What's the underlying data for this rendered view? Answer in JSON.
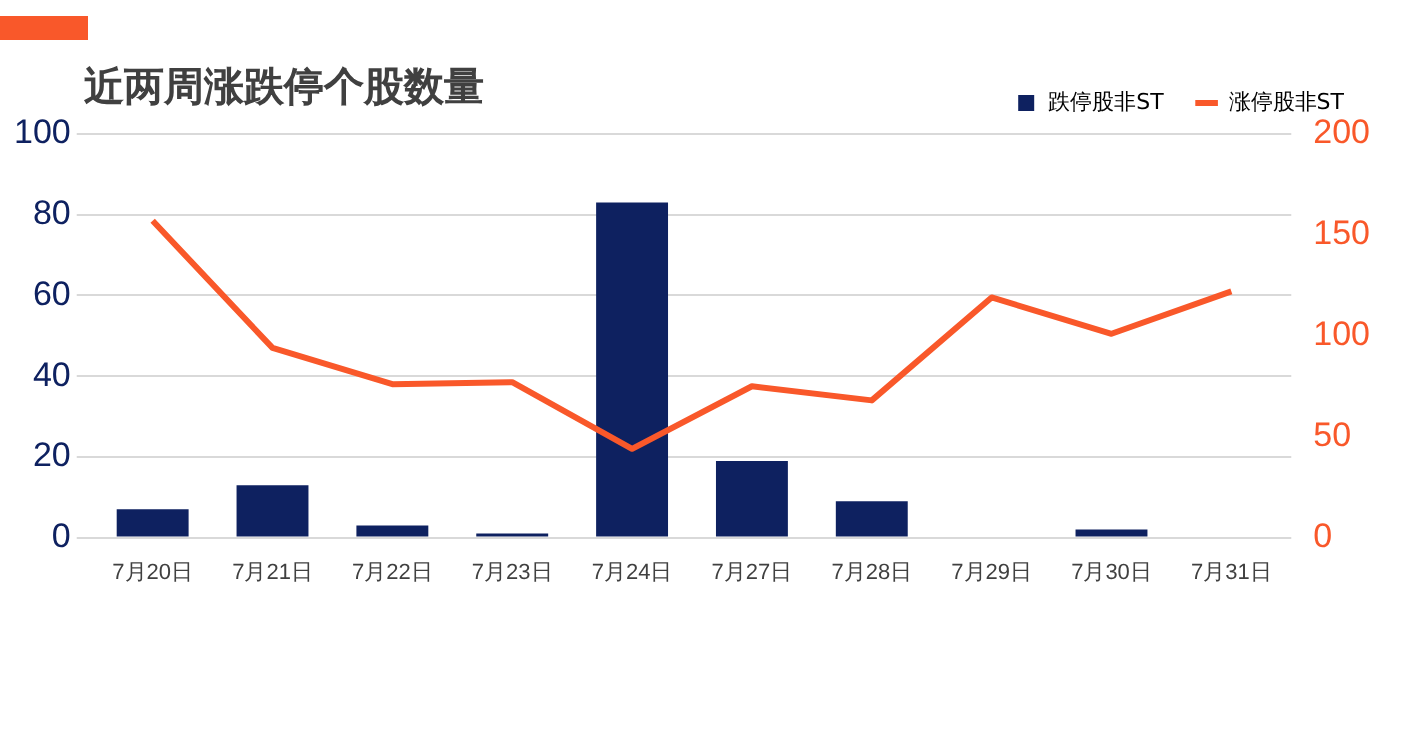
{
  "chart_data": {
    "type": "bar",
    "title": "近两周涨跌停个股数量",
    "categories": [
      "7月20日",
      "7月21日",
      "7月22日",
      "7月23日",
      "7月24日",
      "7月27日",
      "7月28日",
      "7月29日",
      "7月30日",
      "7月31日"
    ],
    "series": [
      {
        "name": "跌停股非ST",
        "color": "#0e2160",
        "values": [
          7,
          13,
          3,
          1,
          83,
          19,
          9,
          0,
          2,
          0
        ]
      },
      {
        "name": "涨停股非ST",
        "type": "line",
        "axis": "y2",
        "color": "#f9582a",
        "values": [
          157,
          94,
          76,
          77,
          44,
          75,
          68,
          119,
          101,
          122
        ]
      }
    ],
    "ylim": [
      0,
      100
    ],
    "yticks": [
      0,
      20,
      40,
      60,
      80,
      100
    ],
    "y2lim": [
      0,
      200
    ],
    "y2ticks": [
      0,
      50,
      100,
      150,
      200
    ],
    "grid": "y",
    "legend": "top right",
    "marker": "none"
  }
}
